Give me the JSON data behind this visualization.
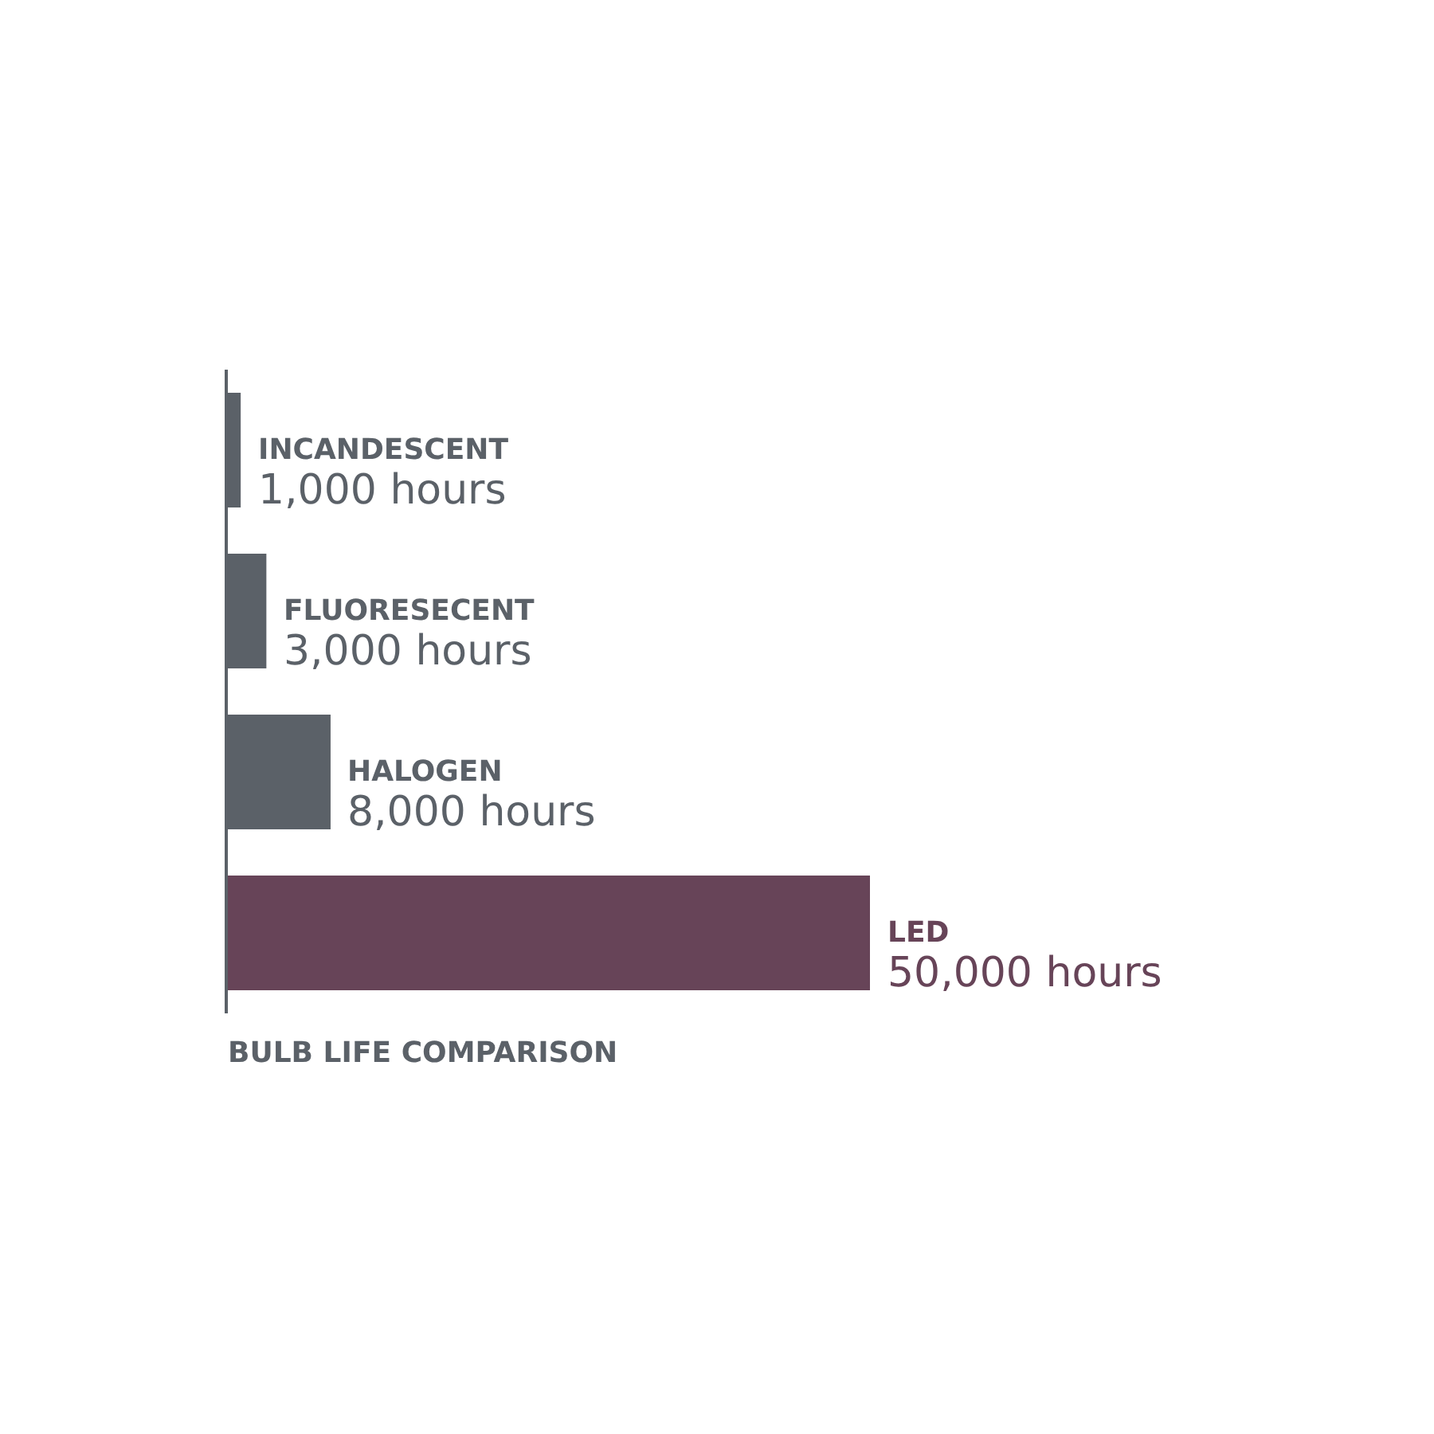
{
  "chart_data": {
    "type": "bar",
    "orientation": "horizontal",
    "title": "BULB LIFE COMPARISON",
    "categories": [
      "INCANDESCENT",
      "FLUORESECENT",
      "HALOGEN",
      "LED"
    ],
    "values": [
      1000,
      3000,
      8000,
      50000
    ],
    "colors": [
      "#5b6168",
      "#5b6168",
      "#5b6168",
      "#674458"
    ],
    "value_labels": [
      "1,000 hours",
      "3,000 hours",
      "8,000 hours",
      "50,000 hours"
    ]
  }
}
